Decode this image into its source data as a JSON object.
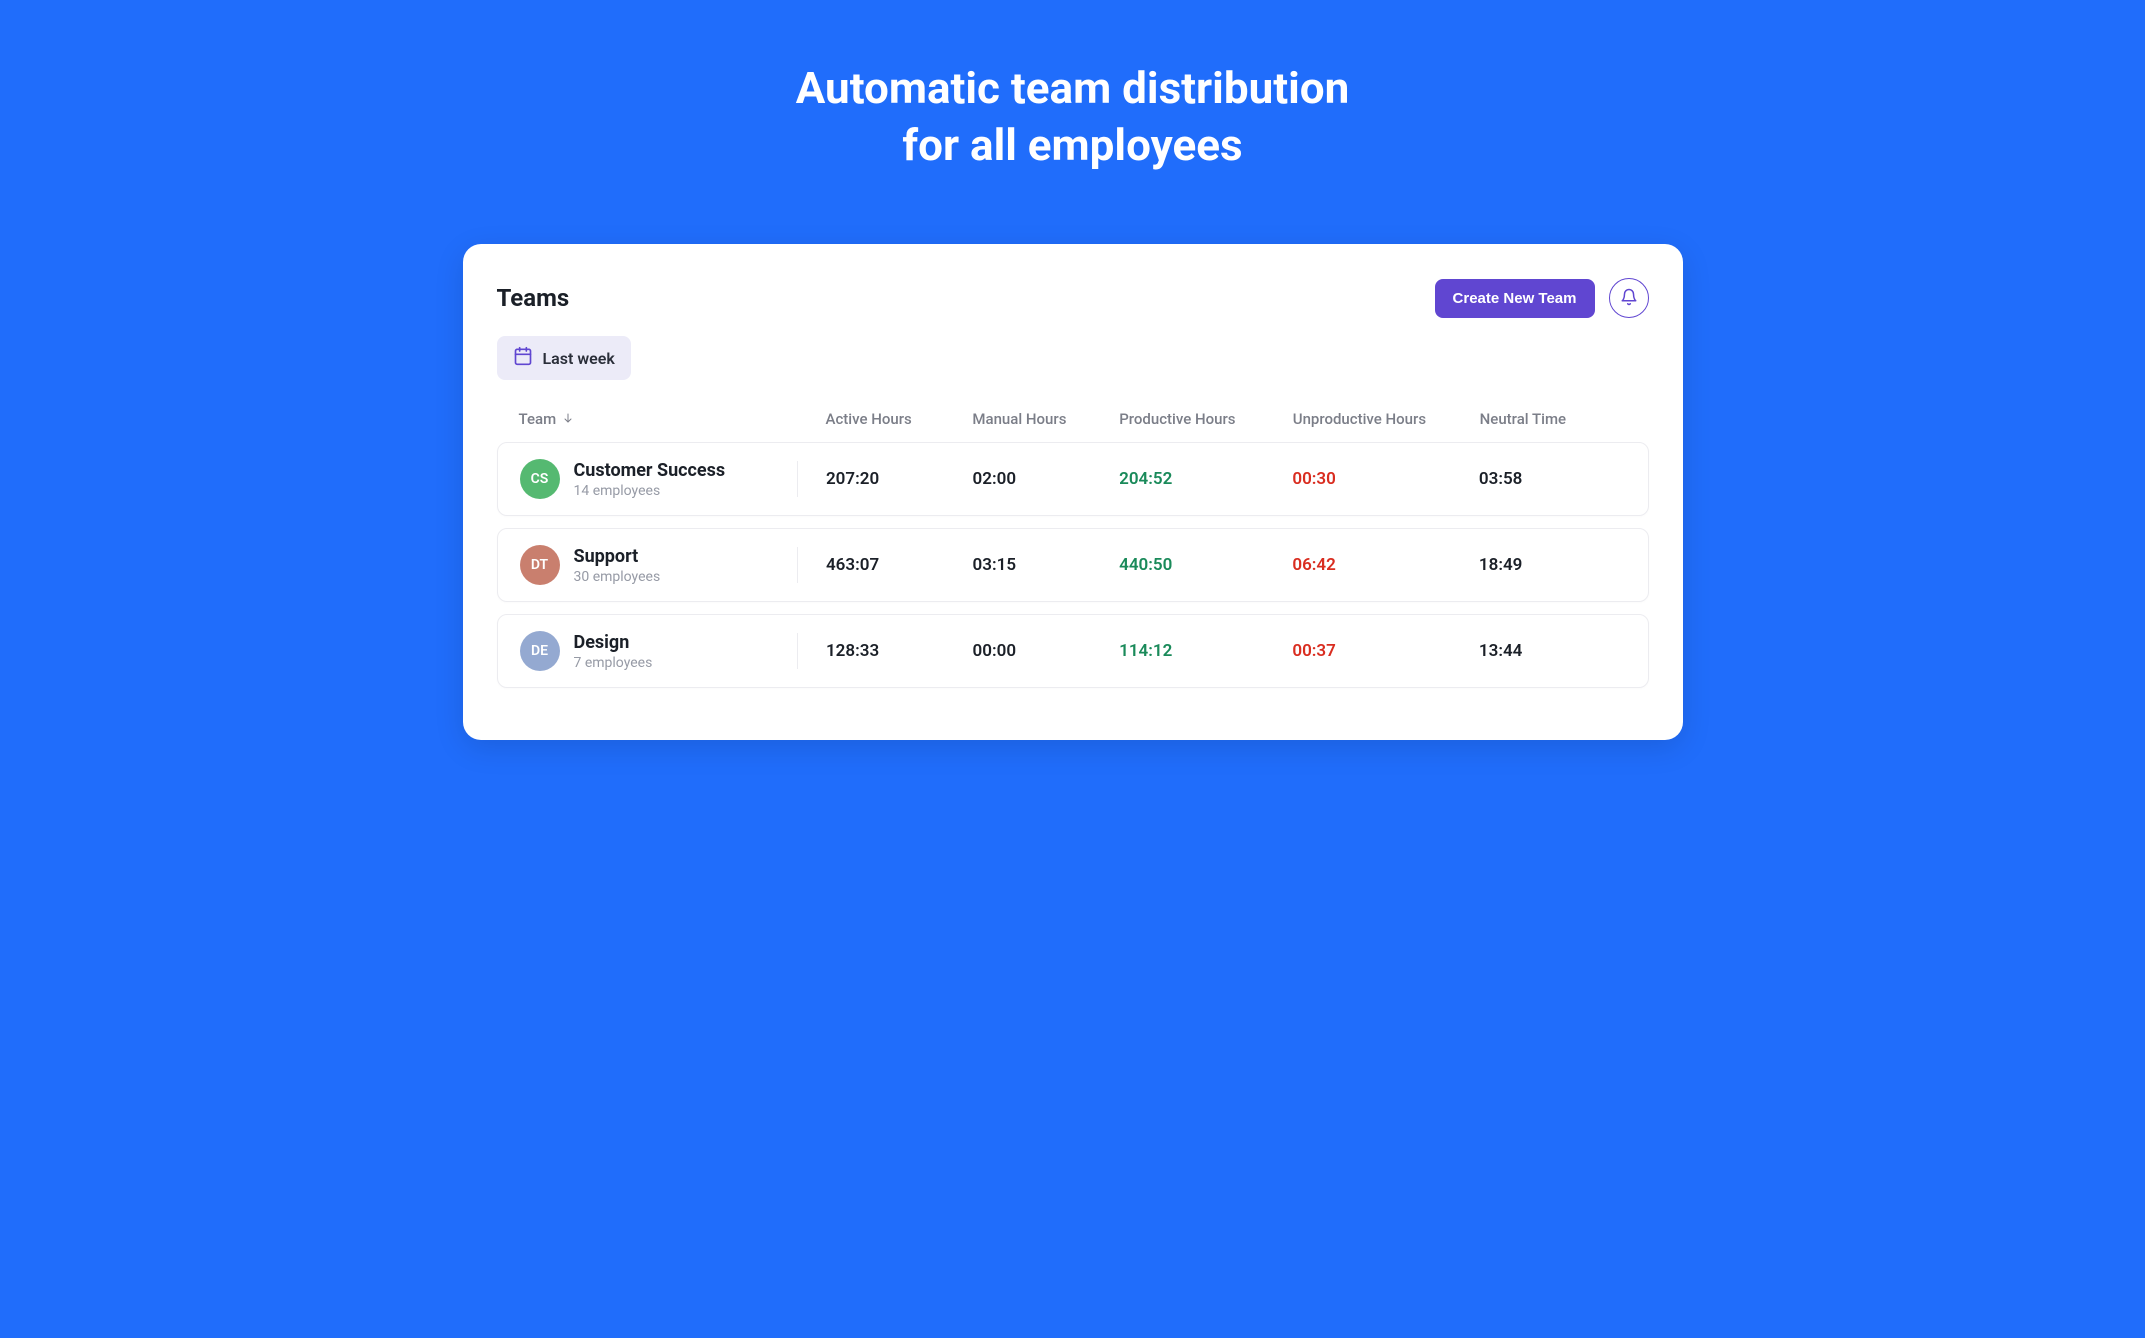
{
  "page": {
    "background_color": "#206dfb",
    "hero_title_line1": "Automatic team distribution",
    "hero_title_line2": "for all employees"
  },
  "panel": {
    "title": "Teams",
    "create_button_label": "Create New Team",
    "create_button_bg": "#6046d1",
    "bell_icon_color": "#6046d1",
    "filter": {
      "label": "Last week",
      "bg": "#ecebf8",
      "icon_color": "#6046d1"
    }
  },
  "table": {
    "columns": {
      "team": "Team",
      "active": "Active Hours",
      "manual": "Manual Hours",
      "productive": "Productive Hours",
      "unproductive": "Unproductive Hours",
      "neutral": "Neutral Time"
    },
    "sort_column": "team",
    "sort_direction": "down",
    "header_text_color": "#7b7e88",
    "row_border_color": "#ececf0",
    "productive_color": "#1a8a5a",
    "unproductive_color": "#d92d20",
    "rows": [
      {
        "initials": "CS",
        "avatar_color": "#55b971",
        "name": "Customer Success",
        "subtitle": "14 employees",
        "active": "207:20",
        "manual": "02:00",
        "productive": "204:52",
        "unproductive": "00:30",
        "neutral": "03:58"
      },
      {
        "initials": "DT",
        "avatar_color": "#c97f6e",
        "name": "Support",
        "subtitle": "30 employees",
        "active": "463:07",
        "manual": "03:15",
        "productive": "440:50",
        "unproductive": "06:42",
        "neutral": "18:49"
      },
      {
        "initials": "DE",
        "avatar_color": "#94a9d1",
        "name": "Design",
        "subtitle": "7 employees",
        "active": "128:33",
        "manual": "00:00",
        "productive": "114:12",
        "unproductive": "00:37",
        "neutral": "13:44"
      }
    ]
  }
}
